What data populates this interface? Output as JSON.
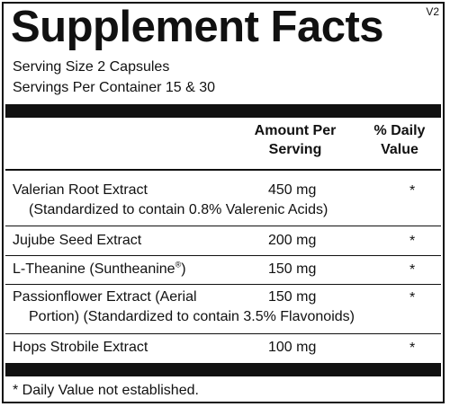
{
  "label": {
    "title": "Supplement Facts",
    "version": "V2",
    "serving_size": "Serving Size 2 Capsules",
    "servings_per_container": "Servings Per Container 15  & 30"
  },
  "table": {
    "header_amount_line1": "Amount Per",
    "header_amount_line2": "Serving",
    "header_dv_line1": "% Daily",
    "header_dv_line2": "Value",
    "rows": [
      {
        "name": "Valerian Root Extract",
        "detail": "(Standardized to contain 0.8% Valerenic Acids)",
        "amount": "450 mg",
        "dv": "*"
      },
      {
        "name": "Jujube Seed Extract",
        "amount": "200 mg",
        "dv": "*"
      },
      {
        "name": "L-Theanine (Suntheanine",
        "name_sup": "®",
        "name_end": ")",
        "amount": "150 mg",
        "dv": "*"
      },
      {
        "name": "Passionflower Extract (Aerial",
        "detail": "Portion) (Standardized to contain 3.5% Flavonoids)",
        "amount": "150 mg",
        "dv": "*"
      },
      {
        "name": "Hops Strobile Extract",
        "amount": "100 mg",
        "dv": "*"
      }
    ]
  },
  "footnote": "* Daily Value not established."
}
